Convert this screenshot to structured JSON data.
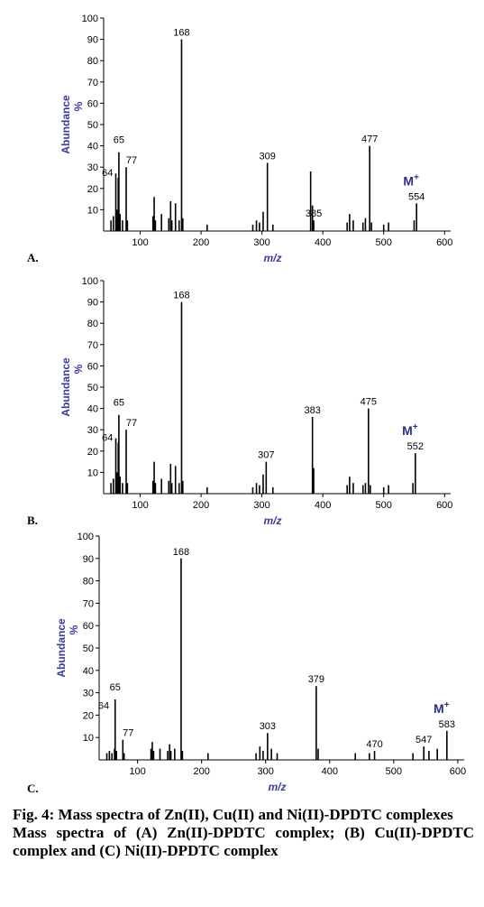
{
  "chart_data": [
    {
      "type": "bar",
      "panel_label": "A.",
      "ylabel": "Abundance",
      "ylabel_unit": "%",
      "xlabel": "m/z",
      "xlim": [
        40,
        610
      ],
      "ylim": [
        0,
        100
      ],
      "xticks": [
        100,
        200,
        300,
        400,
        500,
        600
      ],
      "yticks": [
        10,
        20,
        30,
        40,
        50,
        60,
        70,
        80,
        90,
        100
      ],
      "molecular_ion_label": "M+",
      "peaks": [
        {
          "x": 52,
          "y": 5
        },
        {
          "x": 56,
          "y": 7
        },
        {
          "x": 60,
          "y": 27
        },
        {
          "x": 62,
          "y": 10
        },
        {
          "x": 64,
          "y": 25
        },
        {
          "x": 65,
          "y": 37
        },
        {
          "x": 67,
          "y": 8
        },
        {
          "x": 71,
          "y": 5
        },
        {
          "x": 77,
          "y": 30
        },
        {
          "x": 79,
          "y": 5
        },
        {
          "x": 121,
          "y": 7
        },
        {
          "x": 123,
          "y": 16
        },
        {
          "x": 125,
          "y": 5
        },
        {
          "x": 135,
          "y": 8
        },
        {
          "x": 147,
          "y": 6
        },
        {
          "x": 150,
          "y": 14
        },
        {
          "x": 152,
          "y": 5
        },
        {
          "x": 158,
          "y": 13
        },
        {
          "x": 164,
          "y": 5
        },
        {
          "x": 168,
          "y": 90
        },
        {
          "x": 170,
          "y": 6
        },
        {
          "x": 210,
          "y": 3
        },
        {
          "x": 285,
          "y": 3
        },
        {
          "x": 291,
          "y": 5
        },
        {
          "x": 296,
          "y": 4
        },
        {
          "x": 302,
          "y": 9
        },
        {
          "x": 309,
          "y": 32
        },
        {
          "x": 318,
          "y": 3
        },
        {
          "x": 380,
          "y": 28
        },
        {
          "x": 383,
          "y": 12
        },
        {
          "x": 385,
          "y": 5
        },
        {
          "x": 440,
          "y": 4
        },
        {
          "x": 444,
          "y": 8
        },
        {
          "x": 450,
          "y": 5
        },
        {
          "x": 466,
          "y": 4
        },
        {
          "x": 470,
          "y": 6
        },
        {
          "x": 477,
          "y": 40
        },
        {
          "x": 480,
          "y": 4
        },
        {
          "x": 500,
          "y": 3
        },
        {
          "x": 508,
          "y": 4
        },
        {
          "x": 550,
          "y": 5
        },
        {
          "x": 554,
          "y": 13
        }
      ],
      "labels": [
        {
          "x": 64,
          "text": "64"
        },
        {
          "x": 65,
          "text": "65"
        },
        {
          "x": 77,
          "text": "77"
        },
        {
          "x": 168,
          "text": "168"
        },
        {
          "x": 309,
          "text": "309"
        },
        {
          "x": 385,
          "text": "385"
        },
        {
          "x": 477,
          "text": "477"
        },
        {
          "x": 554,
          "text": "554"
        }
      ]
    },
    {
      "type": "bar",
      "panel_label": "B.",
      "ylabel": "Abundance",
      "ylabel_unit": "%",
      "xlabel": "m/z",
      "xlim": [
        40,
        610
      ],
      "ylim": [
        0,
        100
      ],
      "xticks": [
        100,
        200,
        300,
        400,
        500,
        600
      ],
      "yticks": [
        10,
        20,
        30,
        40,
        50,
        60,
        70,
        80,
        90,
        100
      ],
      "molecular_ion_label": "M+",
      "peaks": [
        {
          "x": 52,
          "y": 5
        },
        {
          "x": 56,
          "y": 7
        },
        {
          "x": 60,
          "y": 26
        },
        {
          "x": 62,
          "y": 10
        },
        {
          "x": 64,
          "y": 24
        },
        {
          "x": 65,
          "y": 37
        },
        {
          "x": 67,
          "y": 8
        },
        {
          "x": 71,
          "y": 5
        },
        {
          "x": 77,
          "y": 30
        },
        {
          "x": 79,
          "y": 5
        },
        {
          "x": 121,
          "y": 6
        },
        {
          "x": 123,
          "y": 15
        },
        {
          "x": 125,
          "y": 5
        },
        {
          "x": 135,
          "y": 7
        },
        {
          "x": 147,
          "y": 6
        },
        {
          "x": 150,
          "y": 14
        },
        {
          "x": 152,
          "y": 5
        },
        {
          "x": 158,
          "y": 13
        },
        {
          "x": 164,
          "y": 5
        },
        {
          "x": 168,
          "y": 90
        },
        {
          "x": 170,
          "y": 6
        },
        {
          "x": 210,
          "y": 3
        },
        {
          "x": 285,
          "y": 3
        },
        {
          "x": 291,
          "y": 5
        },
        {
          "x": 296,
          "y": 4
        },
        {
          "x": 302,
          "y": 9
        },
        {
          "x": 307,
          "y": 15
        },
        {
          "x": 318,
          "y": 3
        },
        {
          "x": 383,
          "y": 36
        },
        {
          "x": 385,
          "y": 12
        },
        {
          "x": 440,
          "y": 4
        },
        {
          "x": 444,
          "y": 8
        },
        {
          "x": 450,
          "y": 5
        },
        {
          "x": 466,
          "y": 4
        },
        {
          "x": 470,
          "y": 5
        },
        {
          "x": 475,
          "y": 40
        },
        {
          "x": 478,
          "y": 4
        },
        {
          "x": 500,
          "y": 3
        },
        {
          "x": 508,
          "y": 4
        },
        {
          "x": 548,
          "y": 5
        },
        {
          "x": 552,
          "y": 19
        }
      ],
      "labels": [
        {
          "x": 64,
          "text": "64"
        },
        {
          "x": 65,
          "text": "65"
        },
        {
          "x": 77,
          "text": "77"
        },
        {
          "x": 168,
          "text": "168"
        },
        {
          "x": 307,
          "text": "307"
        },
        {
          "x": 383,
          "text": "383"
        },
        {
          "x": 475,
          "text": "475"
        },
        {
          "x": 552,
          "text": "552"
        }
      ]
    },
    {
      "type": "bar",
      "panel_label": "C.",
      "ylabel": "Abundance",
      "ylabel_unit": "%",
      "xlabel": "m/z",
      "xlim": [
        40,
        610
      ],
      "ylim": [
        0,
        100
      ],
      "xticks": [
        100,
        200,
        300,
        400,
        500,
        600
      ],
      "yticks": [
        10,
        20,
        30,
        40,
        50,
        60,
        70,
        80,
        90,
        100
      ],
      "molecular_ion_label": "M+",
      "peaks": [
        {
          "x": 52,
          "y": 3
        },
        {
          "x": 56,
          "y": 4
        },
        {
          "x": 60,
          "y": 3
        },
        {
          "x": 64,
          "y": 5
        },
        {
          "x": 65,
          "y": 27
        },
        {
          "x": 67,
          "y": 4
        },
        {
          "x": 77,
          "y": 9
        },
        {
          "x": 79,
          "y": 3
        },
        {
          "x": 121,
          "y": 5
        },
        {
          "x": 123,
          "y": 8
        },
        {
          "x": 125,
          "y": 4
        },
        {
          "x": 135,
          "y": 5
        },
        {
          "x": 147,
          "y": 4
        },
        {
          "x": 150,
          "y": 7
        },
        {
          "x": 152,
          "y": 4
        },
        {
          "x": 158,
          "y": 5
        },
        {
          "x": 168,
          "y": 90
        },
        {
          "x": 170,
          "y": 4
        },
        {
          "x": 210,
          "y": 3
        },
        {
          "x": 285,
          "y": 3
        },
        {
          "x": 291,
          "y": 6
        },
        {
          "x": 296,
          "y": 4
        },
        {
          "x": 303,
          "y": 12
        },
        {
          "x": 309,
          "y": 5
        },
        {
          "x": 318,
          "y": 3
        },
        {
          "x": 379,
          "y": 33
        },
        {
          "x": 382,
          "y": 5
        },
        {
          "x": 440,
          "y": 3
        },
        {
          "x": 462,
          "y": 3
        },
        {
          "x": 470,
          "y": 4
        },
        {
          "x": 530,
          "y": 3
        },
        {
          "x": 547,
          "y": 6
        },
        {
          "x": 555,
          "y": 4
        },
        {
          "x": 568,
          "y": 5
        },
        {
          "x": 583,
          "y": 13
        }
      ],
      "labels": [
        {
          "x": 64,
          "text": "64"
        },
        {
          "x": 65,
          "text": "65"
        },
        {
          "x": 77,
          "text": "77"
        },
        {
          "x": 168,
          "text": "168"
        },
        {
          "x": 303,
          "text": "303"
        },
        {
          "x": 379,
          "text": "379"
        },
        {
          "x": 470,
          "text": "470"
        },
        {
          "x": 547,
          "text": "547"
        },
        {
          "x": 583,
          "text": "583"
        }
      ]
    }
  ],
  "caption": {
    "title": "Fig. 4: Mass spectra of Zn(II), Cu(II) and Ni(II)-DPDTC complexes",
    "subtitle": "Mass spectra of (A) Zn(II)-DPDTC complex; (B) Cu(II)-DPDTC complex and (C) Ni(II)-DPDTC complex"
  }
}
